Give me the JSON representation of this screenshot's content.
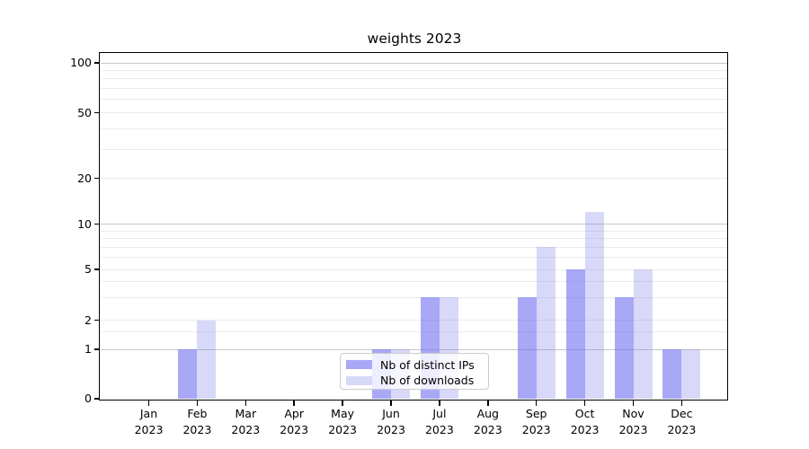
{
  "chart_data": {
    "type": "bar",
    "title": "weights 2023",
    "categories": [
      "Jan",
      "Feb",
      "Mar",
      "Apr",
      "May",
      "Jun",
      "Jul",
      "Aug",
      "Sep",
      "Oct",
      "Nov",
      "Dec"
    ],
    "category_year": "2023",
    "series": [
      {
        "name": "Nb of distinct IPs",
        "color": "rgba(110,110,242,0.6)",
        "values": [
          0,
          1,
          0,
          0,
          0,
          1,
          3,
          0,
          3,
          5,
          3,
          1
        ]
      },
      {
        "name": "Nb of downloads",
        "color": "rgba(125,125,235,0.3)",
        "values": [
          0,
          2,
          0,
          0,
          0,
          1,
          3,
          0,
          7,
          12,
          5,
          1
        ]
      }
    ],
    "y_ticks": [
      0,
      1,
      2,
      5,
      10,
      20,
      50,
      100
    ],
    "y_major_grid_values": [
      1,
      10,
      100
    ],
    "y_minor_gridlines": [
      1.5,
      3,
      4,
      6,
      7,
      8,
      9,
      30,
      40,
      60,
      70,
      80,
      90
    ],
    "ylim": [
      0,
      115
    ],
    "xlabel": "",
    "ylabel": "",
    "grid": "horizontal",
    "legend_position": "lower center"
  },
  "colors": {
    "major_grid": "#c7c7c7",
    "minor_grid": "#ebebeb",
    "spine": "#000000",
    "legend_border": "#cccccc",
    "legend_bg": "rgba(255,255,255,0.8)",
    "text": "#000000"
  }
}
